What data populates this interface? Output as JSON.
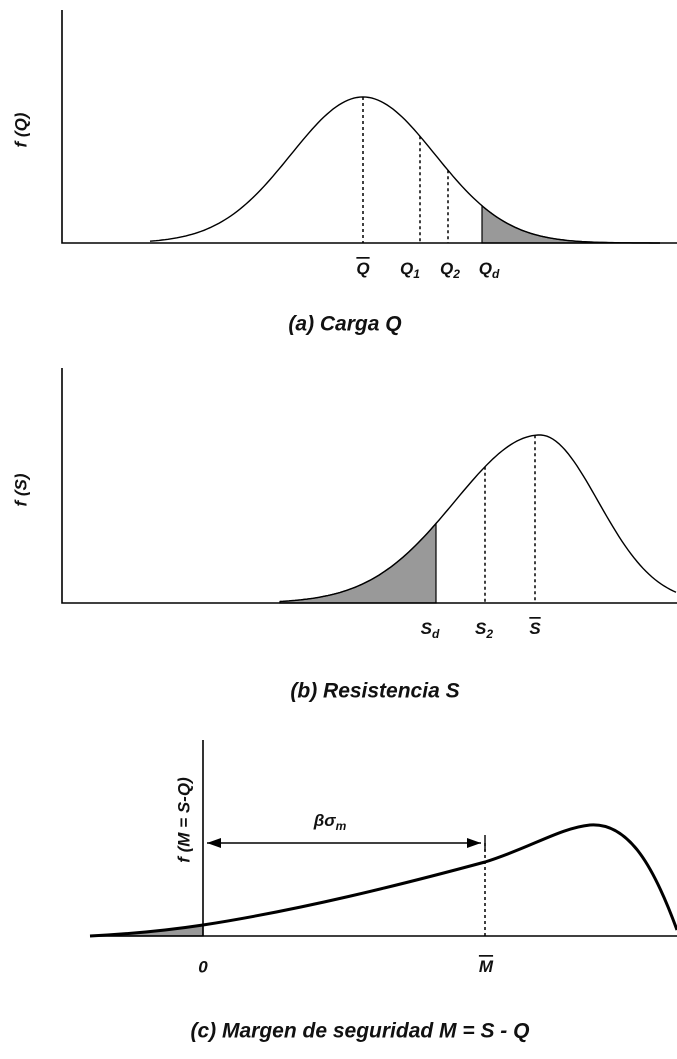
{
  "panel_a": {
    "y_label": "f (Q)",
    "caption": "(a) Carga Q",
    "labels": [
      {
        "base": "Q",
        "sub": ""
      },
      {
        "base": "Q",
        "sub": "1"
      },
      {
        "base": "Q",
        "sub": "2"
      },
      {
        "base": "Q",
        "sub": "d"
      }
    ]
  },
  "panel_b": {
    "y_label": "f (S)",
    "caption": "(b) Resistencia S",
    "labels": [
      {
        "base": "S",
        "sub": "d"
      },
      {
        "base": "S",
        "sub": "2"
      },
      {
        "base": "S",
        "sub": ""
      }
    ]
  },
  "panel_c": {
    "y_label": "f (M = S-Q)",
    "caption": "(c) Margen de seguridad  M = S - Q",
    "arrow_label": {
      "base": "βσ",
      "sub": "m"
    },
    "labels": [
      {
        "base": "0",
        "sub": ""
      },
      {
        "base": "M",
        "sub": ""
      }
    ]
  }
}
